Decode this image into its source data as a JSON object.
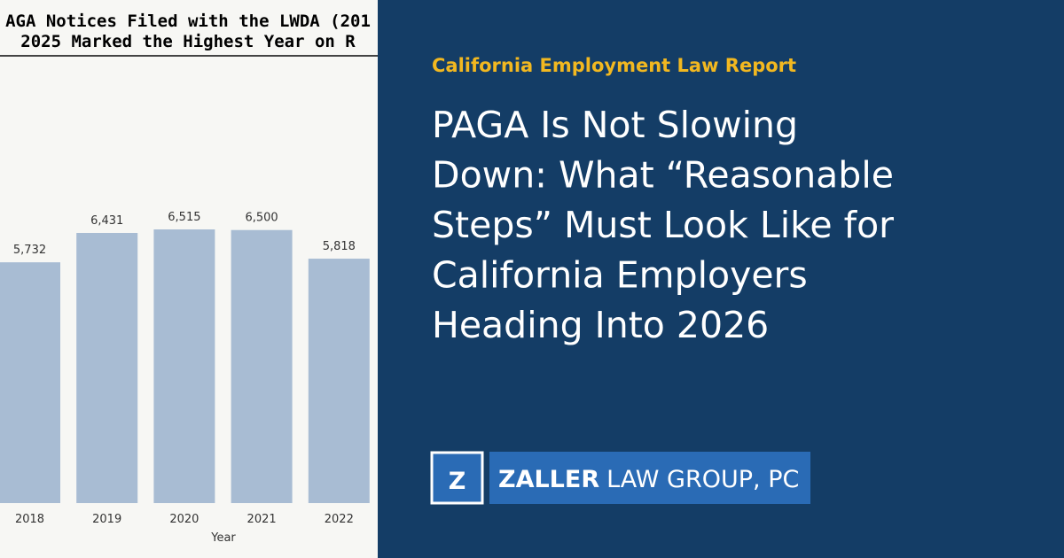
{
  "chart_data": {
    "type": "bar",
    "title": [
      "AGA Notices Filed with the LWDA (201",
      "2025 Marked the Highest Year on R"
    ],
    "xlabel": "Year",
    "categories": [
      "2018",
      "2019",
      "2020",
      "2021",
      "2022"
    ],
    "values": [
      5732,
      6431,
      6515,
      6500,
      5818
    ],
    "value_labels": [
      "5,732",
      "6,431",
      "6,515",
      "6,500",
      "5,818"
    ],
    "color": "#a8bcd3",
    "ylim": [
      0,
      7000
    ]
  },
  "header": {
    "kicker": "California Employment Law Report",
    "headline": [
      "PAGA Is Not Slowing",
      "Down: What “Reasonable",
      "Steps” Must Look Like for",
      "California Employers",
      "Heading Into 2026"
    ]
  },
  "logo": {
    "mark": "Z",
    "name": "ZALLER",
    "suffix": "LAW GROUP, PC"
  }
}
